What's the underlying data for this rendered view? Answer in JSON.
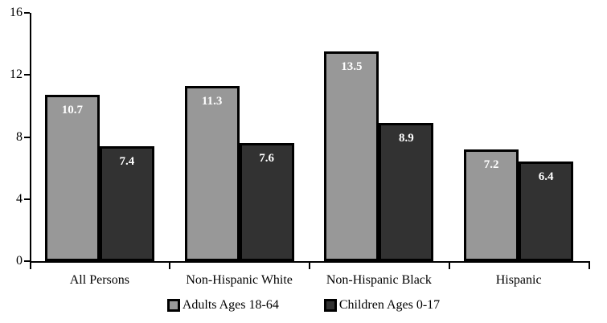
{
  "chart_data": {
    "type": "bar",
    "title": "",
    "xlabel": "",
    "ylabel": "",
    "categories": [
      "All Persons",
      "Non-Hispanic White",
      "Non-Hispanic Black",
      "Hispanic"
    ],
    "series": [
      {
        "name": "Adults Ages 18-64",
        "color": "#989898",
        "values": [
          10.7,
          11.3,
          13.5,
          7.2
        ]
      },
      {
        "name": "Children Ages 0-17",
        "color": "#323232",
        "values": [
          7.4,
          7.6,
          8.9,
          6.4
        ]
      }
    ],
    "ylim": [
      0,
      16
    ],
    "yticks": [
      0,
      4,
      8,
      12,
      16
    ],
    "grid": false,
    "legend_position": "bottom",
    "bar_label_color": "#ffffff",
    "bar_border_color": "#000000",
    "axis_color": "#000000",
    "background_color": "#ffffff"
  }
}
